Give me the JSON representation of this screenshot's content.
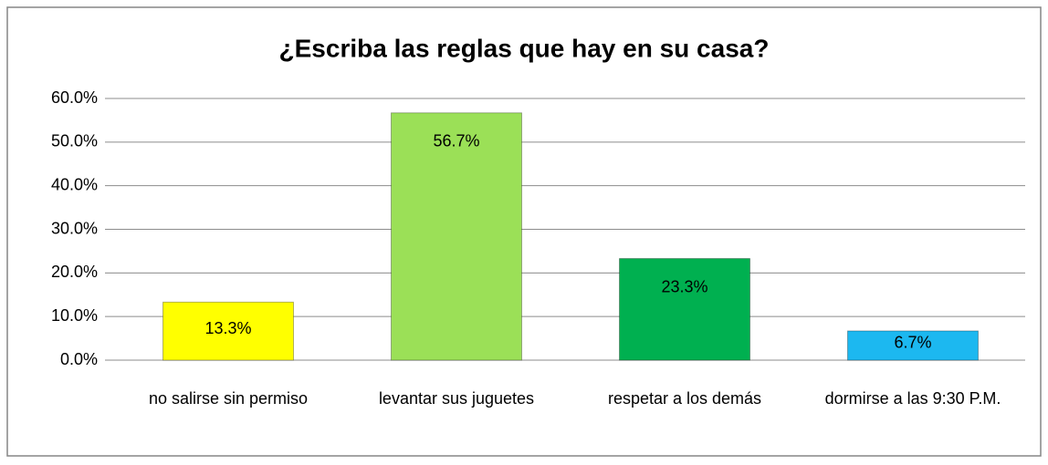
{
  "chart_data": {
    "type": "bar",
    "title": "¿Escriba las reglas que hay en su casa?",
    "categories": [
      "no salirse sin permiso",
      "levantar sus juguetes",
      "respetar a los demás",
      "dormirse a las 9:30 P.M."
    ],
    "values": [
      13.3,
      56.7,
      23.3,
      6.7
    ],
    "value_labels": [
      "13.3%",
      "56.7%",
      "23.3%",
      "6.7%"
    ],
    "colors": [
      "#ffff00",
      "#9be057",
      "#00b050",
      "#1cb8f0"
    ],
    "ylim": [
      0,
      60
    ],
    "yticks": [
      {
        "value": 0,
        "label": "0.0%"
      },
      {
        "value": 10,
        "label": "10.0%"
      },
      {
        "value": 20,
        "label": "20.0%"
      },
      {
        "value": 30,
        "label": "30.0%"
      },
      {
        "value": 40,
        "label": "40.0%"
      },
      {
        "value": 50,
        "label": "50.0%"
      },
      {
        "value": 60,
        "label": "60.0%"
      }
    ],
    "grid": true
  }
}
